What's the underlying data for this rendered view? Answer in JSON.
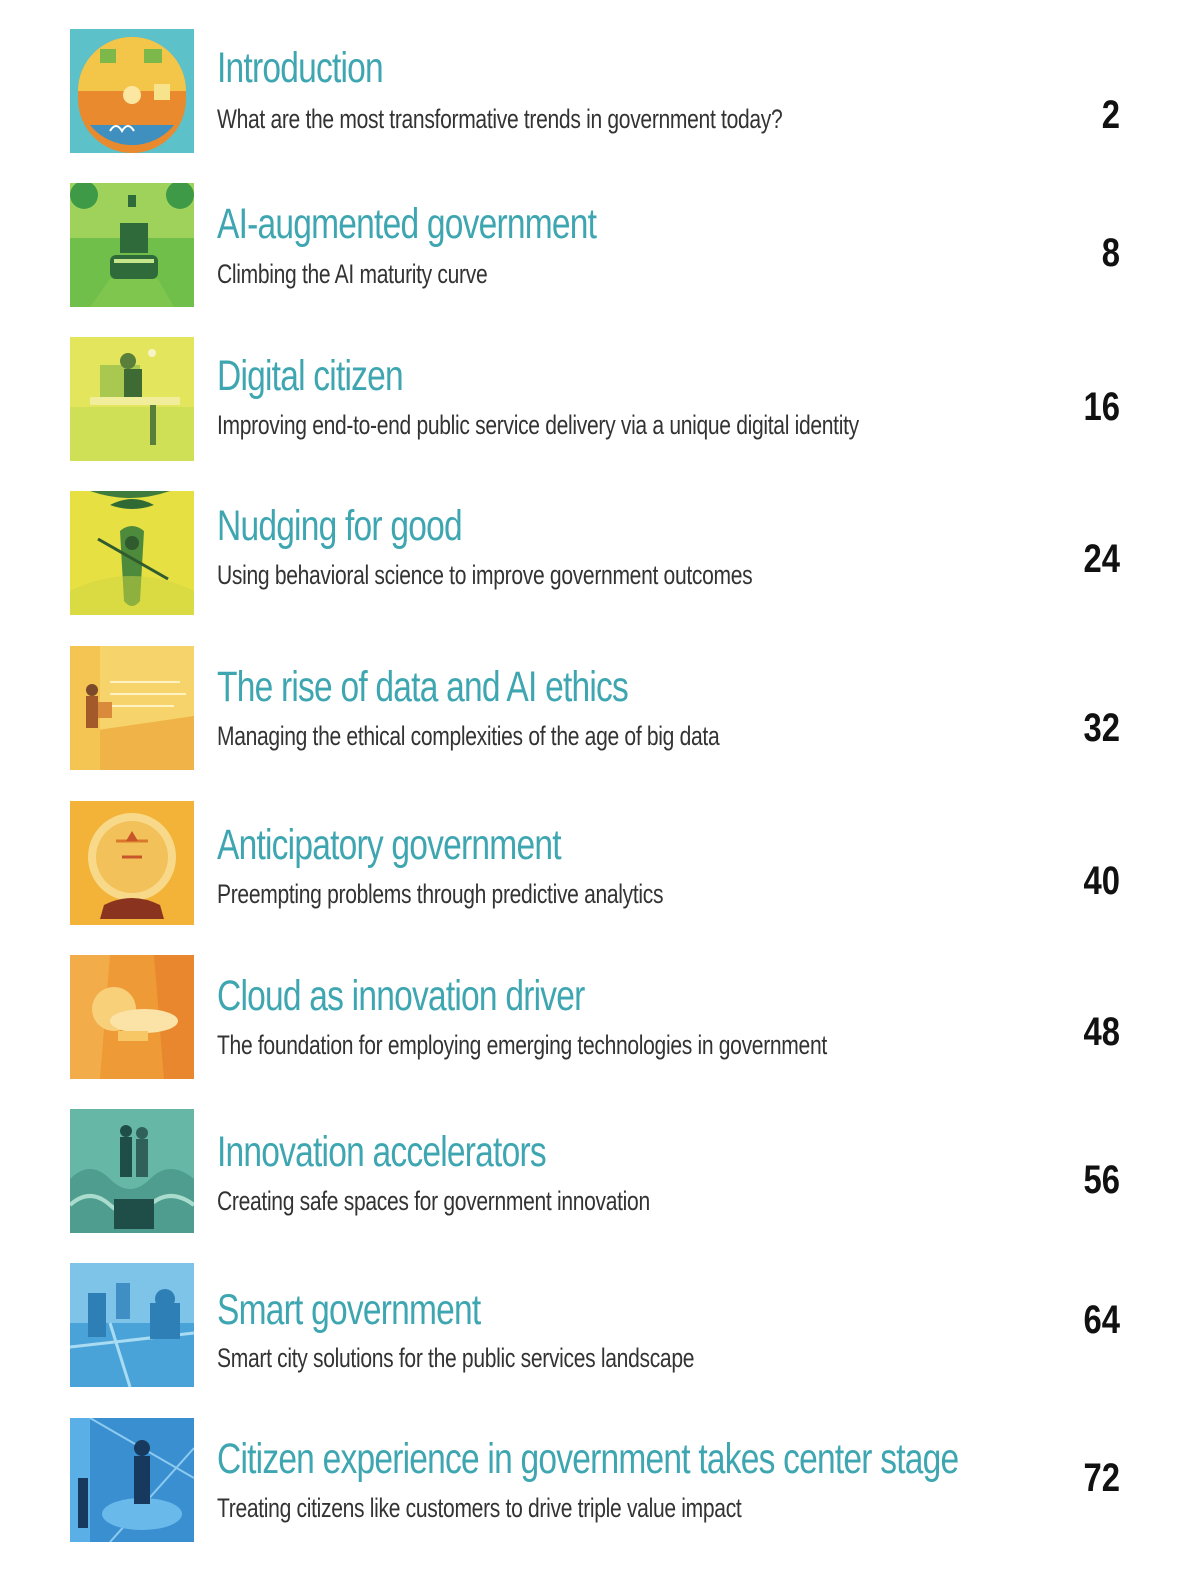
{
  "entries": [
    {
      "title": "Introduction",
      "subtitle": "What are the most transformative trends in government today?",
      "page": "2"
    },
    {
      "title": "AI-augmented government",
      "subtitle": "Climbing the AI maturity curve",
      "page": "8"
    },
    {
      "title": "Digital citizen",
      "subtitle": "Improving end-to-end public service delivery via a unique digital identity",
      "page": "16"
    },
    {
      "title": "Nudging for good",
      "subtitle": "Using behavioral science to improve government outcomes",
      "page": "24"
    },
    {
      "title": "The rise of data and AI ethics",
      "subtitle": "Managing the ethical complexities of the age of big data",
      "page": "32"
    },
    {
      "title": "Anticipatory government",
      "subtitle": "Preempting problems through predictive analytics",
      "page": "40"
    },
    {
      "title": "Cloud as innovation driver",
      "subtitle": "The foundation for employing emerging technologies in government",
      "page": "48"
    },
    {
      "title": "Innovation accelerators",
      "subtitle": "Creating safe spaces for government innovation",
      "page": "56"
    },
    {
      "title": "Smart government",
      "subtitle": "Smart city solutions for the public services landscape",
      "page": "64"
    },
    {
      "title": "Citizen experience in government takes center stage",
      "subtitle": "Treating citizens like customers to drive triple value impact",
      "page": "72"
    }
  ]
}
